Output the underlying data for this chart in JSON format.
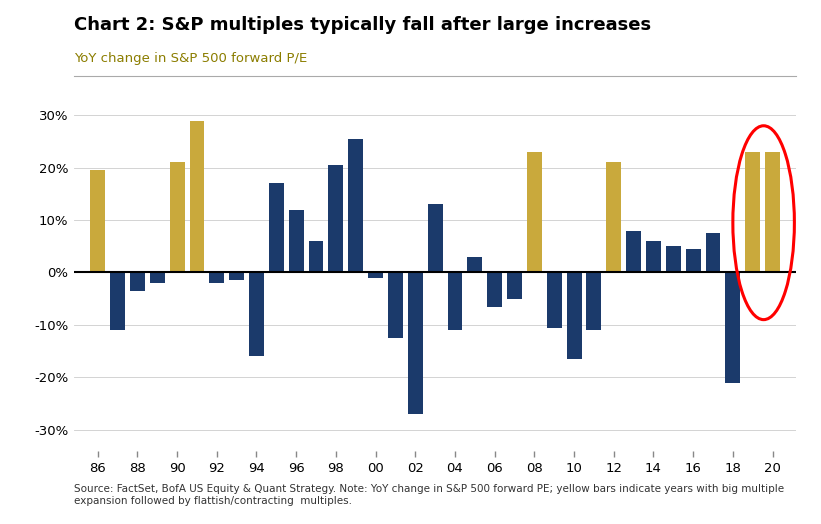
{
  "title": "Chart 2: S&P multiples typically fall after large increases",
  "subtitle": "YoY change in S&P 500 forward P/E",
  "source": "Source: FactSet, BofA US Equity & Quant Strategy. Note: YoY change in S&P 500 forward PE; yellow bars indicate years with big multiple\nexpansion followed by flattish/contracting  multiples.",
  "years": [
    1986,
    1987,
    1988,
    1989,
    1990,
    1991,
    1992,
    1993,
    1994,
    1995,
    1996,
    1997,
    1998,
    1999,
    2000,
    2001,
    2002,
    2003,
    2004,
    2005,
    2006,
    2007,
    2008,
    2009,
    2010,
    2011,
    2012,
    2013,
    2014,
    2015,
    2016,
    2017,
    2018,
    2019,
    2020
  ],
  "values": [
    19.5,
    -11.0,
    -3.5,
    -2.0,
    21.0,
    29.0,
    -2.0,
    -1.5,
    -16.0,
    17.0,
    12.0,
    6.0,
    20.5,
    25.5,
    -1.0,
    -12.5,
    -27.0,
    13.0,
    -11.0,
    3.0,
    -6.5,
    -5.0,
    23.0,
    -10.5,
    -16.5,
    -11.0,
    21.0,
    8.0,
    6.0,
    5.0,
    4.5,
    7.5,
    -21.0,
    23.0,
    23.0
  ],
  "yellow_years": [
    1986,
    1990,
    1991,
    2008,
    2012,
    2019,
    2020
  ],
  "bar_color_navy": "#1b3a6b",
  "bar_color_gold": "#c9a93c",
  "background_color": "#ffffff",
  "title_fontsize": 13,
  "subtitle_fontsize": 9.5,
  "axis_fontsize": 10,
  "ylim_low": -34,
  "ylim_high": 34,
  "subtitle_color": "#8B7D00"
}
